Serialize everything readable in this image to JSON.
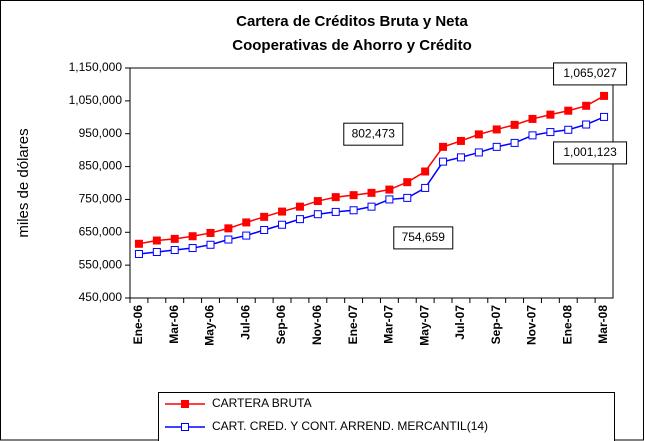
{
  "chart_data": {
    "type": "line",
    "title": "Cartera de Créditos Bruta y Neta",
    "subtitle": "Cooperativas de Ahorro y Crédito",
    "y_label": "miles de dólares",
    "categories": [
      "Ene-06",
      null,
      "Mar-06",
      null,
      "May-06",
      null,
      "Jul-06",
      null,
      "Sep-06",
      null,
      "Nov-06",
      null,
      "Ene-07",
      null,
      "Mar-07",
      null,
      "May-07",
      null,
      "Jul-07",
      null,
      "Sep-07",
      null,
      "Nov-07",
      null,
      "Ene-08",
      null,
      "Mar-08"
    ],
    "series": [
      {
        "name": "CARTERA BRUTA",
        "color": "#ff0000",
        "marker": "filled-square",
        "values": [
          615000,
          625000,
          630000,
          638000,
          648000,
          662000,
          680000,
          697000,
          713000,
          728000,
          745000,
          757000,
          763000,
          770000,
          780000,
          802473,
          835000,
          910000,
          928000,
          948000,
          963000,
          977000,
          995000,
          1008000,
          1020000,
          1035000,
          1065027
        ],
        "value_labels": [
          null,
          null,
          null,
          null,
          null,
          null,
          null,
          null,
          null,
          null,
          null,
          null,
          null,
          null,
          null,
          "802,473",
          null,
          null,
          null,
          null,
          null,
          null,
          null,
          null,
          null,
          null,
          "1,065,027"
        ]
      },
      {
        "name": "CART. CRED. Y CONT. ARREND. MERCANTIL(14)",
        "color": "#0000ff",
        "marker": "hollow-square",
        "values": [
          584000,
          590000,
          596000,
          602000,
          612000,
          628000,
          640000,
          657000,
          673000,
          690000,
          705000,
          712000,
          717000,
          728000,
          750000,
          754659,
          785000,
          865000,
          878000,
          893000,
          910000,
          922000,
          945000,
          955000,
          962000,
          978000,
          1001123
        ],
        "value_labels": [
          null,
          null,
          null,
          null,
          null,
          null,
          null,
          null,
          null,
          null,
          null,
          null,
          null,
          null,
          null,
          "754,659",
          null,
          null,
          null,
          null,
          null,
          null,
          null,
          null,
          null,
          null,
          "1,001,123"
        ]
      }
    ],
    "ylim": [
      450000,
      1150000
    ],
    "yticks": [
      {
        "value": 450000,
        "label": "450,000"
      },
      {
        "value": 550000,
        "label": "550,000"
      },
      {
        "value": 650000,
        "label": "650,000"
      },
      {
        "value": 750000,
        "label": "750,000"
      },
      {
        "value": 850000,
        "label": "850,000"
      },
      {
        "value": 950000,
        "label": "950,000"
      },
      {
        "value": 1050000,
        "label": "1,050,000"
      },
      {
        "value": 1150000,
        "label": "1,150,000"
      }
    ],
    "grid": false,
    "legend": "bottom"
  }
}
